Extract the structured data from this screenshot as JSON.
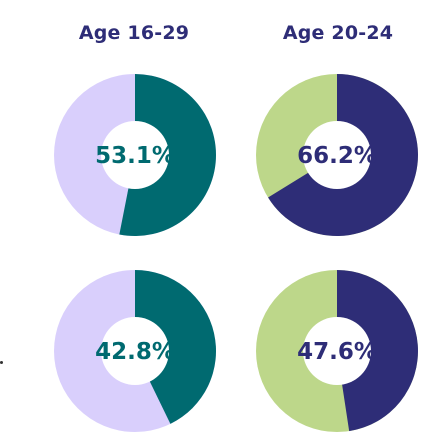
{
  "chart_data": {
    "type": "pie",
    "columns": [
      "Age 16-29",
      "Age 20-24"
    ],
    "charts": [
      {
        "column": "Age 16-29",
        "value": 53.1,
        "label": "53.1%",
        "main_color": "#006a70",
        "rest_color": "#d9cffc",
        "label_color": "#006a70"
      },
      {
        "column": "Age 20-24",
        "value": 66.2,
        "label": "66.2%",
        "main_color": "#2e2d77",
        "rest_color": "#bdd78a",
        "label_color": "#2e2d77"
      },
      {
        "column": "Age 16-29",
        "value": 42.8,
        "label": "42.8%",
        "main_color": "#006a70",
        "rest_color": "#d9cffc",
        "label_color": "#006a70"
      },
      {
        "column": "Age 20-24",
        "value": 47.6,
        "label": "47.6%",
        "main_color": "#2e2d77",
        "rest_color": "#bdd78a",
        "label_color": "#2e2d77"
      }
    ]
  }
}
